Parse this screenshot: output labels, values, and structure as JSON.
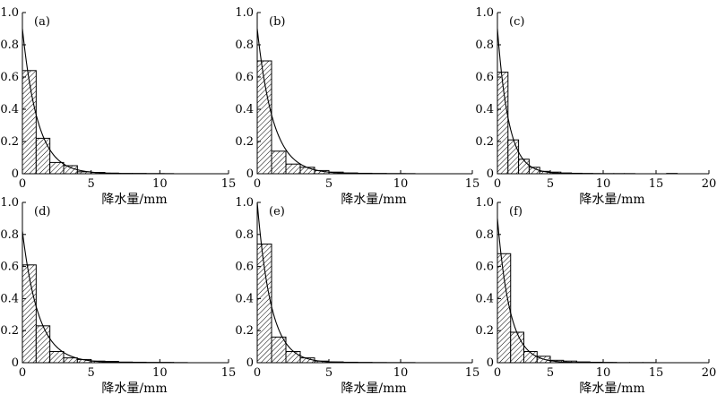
{
  "chart_data": [
    {
      "type": "bar",
      "panel_label": "(a)",
      "xlabel": "降水量/mm",
      "ylabel": "",
      "xlim": [
        0,
        15
      ],
      "ylim": [
        0,
        1.0
      ],
      "xticks": [
        0,
        5,
        10,
        15
      ],
      "yticks": [
        0,
        0.2,
        0.4,
        0.6,
        0.8,
        1.0
      ],
      "bin_width": 1,
      "bins": [
        0,
        1,
        2,
        3,
        4,
        5,
        6,
        7,
        8,
        9,
        10,
        11,
        12,
        13,
        14
      ],
      "values": [
        0.64,
        0.22,
        0.07,
        0.05,
        0.012,
        0.008,
        0.004,
        0.002,
        0.002,
        0.001,
        0.001,
        0,
        0,
        0,
        0
      ],
      "curve": {
        "type": "exponential",
        "a": 0.9,
        "b": 0.9
      },
      "grid": false,
      "legend": "none"
    },
    {
      "type": "bar",
      "panel_label": "(b)",
      "xlabel": "降水量/mm",
      "ylabel": "",
      "xlim": [
        0,
        15
      ],
      "ylim": [
        0,
        1.0
      ],
      "xticks": [
        0,
        5,
        10,
        15
      ],
      "yticks": [
        0,
        0.2,
        0.4,
        0.6,
        0.8,
        1.0
      ],
      "bin_width": 1,
      "bins": [
        0,
        1,
        2,
        3,
        4,
        5,
        6,
        7,
        8,
        9,
        10,
        11,
        12,
        13,
        14
      ],
      "values": [
        0.7,
        0.14,
        0.06,
        0.04,
        0.02,
        0.01,
        0.005,
        0.003,
        0.002,
        0.001,
        0.001,
        0,
        0,
        0,
        0
      ],
      "curve": {
        "type": "exponential",
        "a": 0.9,
        "b": 0.9
      },
      "grid": false,
      "legend": "none"
    },
    {
      "type": "bar",
      "panel_label": "(c)",
      "xlabel": "降水量/mm",
      "ylabel": "",
      "xlim": [
        0,
        20
      ],
      "ylim": [
        0,
        1.0
      ],
      "xticks": [
        0,
        5,
        10,
        15,
        20
      ],
      "yticks": [
        0,
        0.2,
        0.4,
        0.6,
        0.8,
        1.0
      ],
      "bin_width": 1,
      "bins": [
        0,
        1,
        2,
        3,
        4,
        5,
        6,
        7,
        8,
        9,
        10,
        11,
        12,
        13,
        14,
        15,
        16,
        17,
        18,
        19
      ],
      "values": [
        0.63,
        0.21,
        0.09,
        0.04,
        0.015,
        0.01,
        0.005,
        0.003,
        0.002,
        0.001,
        0.001,
        0.001,
        0.001,
        0,
        0,
        0,
        0.002,
        0,
        0,
        0
      ],
      "curve": {
        "type": "exponential",
        "a": 0.9,
        "b": 0.95
      },
      "grid": false,
      "legend": "none"
    },
    {
      "type": "bar",
      "panel_label": "(d)",
      "xlabel": "降水量/mm",
      "ylabel": "",
      "xlim": [
        0,
        15
      ],
      "ylim": [
        0,
        1.0
      ],
      "xticks": [
        0,
        5,
        10,
        15
      ],
      "yticks": [
        0,
        0.2,
        0.4,
        0.6,
        0.8,
        1.0
      ],
      "bin_width": 1,
      "bins": [
        0,
        1,
        2,
        3,
        4,
        5,
        6,
        7,
        8,
        9,
        10,
        11,
        12,
        13,
        14
      ],
      "values": [
        0.61,
        0.23,
        0.07,
        0.03,
        0.02,
        0.01,
        0.008,
        0.004,
        0.003,
        0.002,
        0.002,
        0.001,
        0,
        0,
        0
      ],
      "curve": {
        "type": "exponential",
        "a": 0.82,
        "b": 0.85
      },
      "grid": false,
      "legend": "none"
    },
    {
      "type": "bar",
      "panel_label": "(e)",
      "xlabel": "降水量/mm",
      "ylabel": "",
      "xlim": [
        0,
        15
      ],
      "ylim": [
        0,
        1.0
      ],
      "xticks": [
        0,
        5,
        10,
        15
      ],
      "yticks": [
        0,
        0.2,
        0.4,
        0.6,
        0.8,
        1.0
      ],
      "bin_width": 1,
      "bins": [
        0,
        1,
        2,
        3,
        4,
        5,
        6,
        7,
        8,
        9,
        10,
        11,
        12,
        13,
        14
      ],
      "values": [
        0.74,
        0.16,
        0.07,
        0.03,
        0.01,
        0.005,
        0.003,
        0.002,
        0.001,
        0.001,
        0.001,
        0,
        0,
        0,
        0
      ],
      "curve": {
        "type": "exponential",
        "a": 1.0,
        "b": 1.05
      },
      "grid": false,
      "legend": "none"
    },
    {
      "type": "bar",
      "panel_label": "(f)",
      "xlabel": "降水量/mm",
      "ylabel": "",
      "xlim": [
        0,
        20
      ],
      "ylim": [
        0,
        1.0
      ],
      "xticks": [
        0,
        5,
        10,
        15,
        20
      ],
      "yticks": [
        0,
        0.2,
        0.4,
        0.6,
        0.8,
        1.0
      ],
      "bin_width": 1.25,
      "bins": [
        0,
        1.25,
        2.5,
        3.75,
        5,
        6.25,
        7.5,
        8.75,
        10,
        11.25,
        12.5,
        13.75,
        15,
        16.25,
        17.5,
        18.75
      ],
      "values": [
        0.68,
        0.19,
        0.07,
        0.04,
        0.015,
        0.01,
        0.005,
        0.003,
        0.002,
        0.001,
        0.001,
        0.001,
        0,
        0,
        0,
        0
      ],
      "curve": {
        "type": "exponential",
        "a": 0.9,
        "b": 0.85
      },
      "grid": false,
      "legend": "none"
    }
  ]
}
